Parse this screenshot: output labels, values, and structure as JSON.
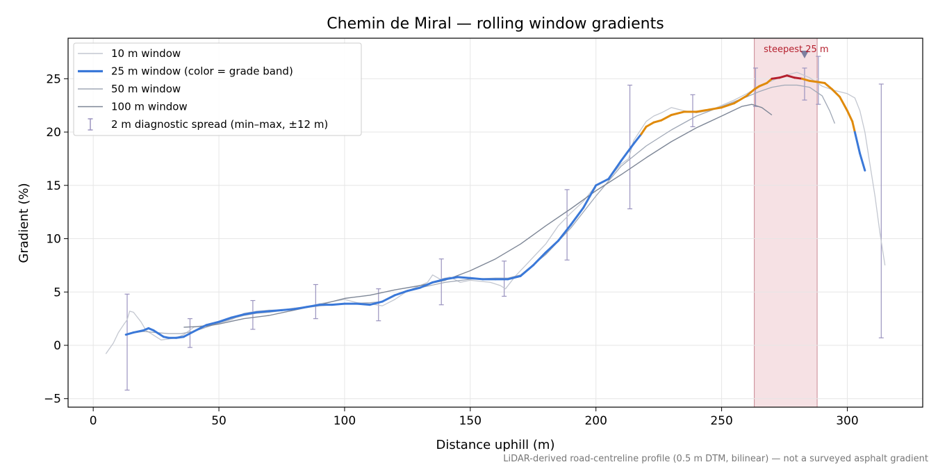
{
  "chart_data": {
    "type": "line",
    "title": "Chemin de Miral — rolling window gradients",
    "xlabel": "Distance uphill (m)",
    "ylabel": "Gradient (%)",
    "xlim": [
      -10,
      330
    ],
    "ylim": [
      -5.8,
      28.8
    ],
    "xticks": [
      0,
      50,
      100,
      150,
      200,
      250,
      300
    ],
    "yticks": [
      -5,
      0,
      5,
      10,
      15,
      20,
      25
    ],
    "tick_labels": {
      "x": [
        "0",
        "50",
        "100",
        "150",
        "200",
        "250",
        "300"
      ],
      "y": [
        "−5",
        "0",
        "5",
        "10",
        "15",
        "20",
        "25"
      ]
    },
    "grid": true,
    "legend_position": "upper-left",
    "footnote": "LiDAR-derived road-centreline profile (0.5 m DTM, bilinear) — not a surveyed asphalt gradient",
    "legend": [
      {
        "label": "10 m window",
        "color": "#c3c7d0",
        "kind": "line"
      },
      {
        "label": "25 m window (color = grade band)",
        "color": "#3a78d8",
        "kind": "thick-line"
      },
      {
        "label": "50 m window",
        "color": "#a0a8b6",
        "kind": "line"
      },
      {
        "label": "100 m window",
        "color": "#7d8696",
        "kind": "line"
      },
      {
        "label": "2 m diagnostic spread (min–max, ±12 m)",
        "color": "#9a93bf",
        "kind": "errorbar"
      }
    ],
    "highlight_span": {
      "x": [
        263,
        288
      ],
      "label": "steepest 25 m",
      "color": "#e6a9b1",
      "peak_x": 283,
      "marker_y": 27.3
    },
    "series": [
      {
        "name": "10 m window",
        "color": "#c3c7d0",
        "x": [
          5,
          8,
          10,
          12,
          13.5,
          14.5,
          16,
          17,
          19,
          21,
          23,
          25,
          27,
          30,
          33,
          36,
          40,
          45,
          50,
          55,
          60,
          65,
          70,
          75,
          80,
          85,
          90,
          95,
          100,
          105,
          110,
          115,
          120,
          125,
          130,
          133,
          135,
          138,
          142,
          146,
          150,
          154,
          158,
          162,
          164,
          168,
          172,
          176,
          180,
          185,
          190,
          195,
          200,
          205,
          210,
          213,
          215,
          220,
          223,
          226,
          230,
          235,
          240,
          245,
          250,
          255,
          260,
          265,
          270,
          275,
          280,
          285,
          290,
          295,
          300,
          303,
          305,
          307,
          309,
          311,
          313,
          315
        ],
        "y": [
          -0.8,
          0.2,
          1.2,
          1.9,
          2.4,
          3.2,
          3.1,
          2.8,
          2.2,
          1.4,
          1.1,
          0.8,
          0.5,
          0.6,
          0.7,
          1.0,
          1.7,
          1.9,
          2.1,
          2.4,
          3.0,
          3.2,
          3.3,
          3.3,
          3.5,
          3.6,
          3.9,
          4.1,
          4.3,
          4.0,
          3.9,
          3.7,
          4.3,
          5.1,
          5.6,
          5.9,
          6.6,
          6.2,
          6.4,
          5.9,
          6.1,
          6.0,
          5.9,
          5.6,
          5.3,
          6.5,
          7.5,
          8.5,
          9.5,
          11.2,
          12.4,
          13.5,
          15.0,
          15.6,
          17.0,
          17.5,
          19.2,
          21.0,
          21.5,
          21.8,
          22.3,
          22.0,
          21.8,
          22.0,
          22.5,
          23.0,
          23.6,
          24.3,
          24.8,
          25.3,
          25.6,
          25.1,
          24.3,
          23.9,
          23.6,
          23.2,
          22.0,
          20.0,
          17.0,
          14.0,
          10.5,
          7.5
        ]
      },
      {
        "name": "25 m window (color = grade band)",
        "color": "#3a78d8",
        "x": [
          13,
          16,
          20,
          22,
          24,
          26,
          28,
          30,
          33,
          36,
          40,
          45,
          50,
          55,
          60,
          65,
          70,
          75,
          80,
          85,
          90,
          95,
          100,
          105,
          110,
          115,
          120,
          125,
          130,
          135,
          140,
          145,
          150,
          155,
          160,
          165,
          170,
          175,
          180,
          185,
          190,
          195,
          200,
          205,
          210,
          215,
          218,
          220,
          223,
          226,
          230,
          235,
          240,
          245,
          250,
          255,
          260,
          263,
          265,
          268,
          270,
          273,
          276,
          279,
          282,
          285,
          288,
          291,
          294,
          297,
          300,
          302,
          303,
          305,
          307
        ],
        "y": [
          1.0,
          1.2,
          1.4,
          1.6,
          1.4,
          1.1,
          0.8,
          0.7,
          0.7,
          0.8,
          1.3,
          1.9,
          2.2,
          2.6,
          2.9,
          3.1,
          3.2,
          3.3,
          3.4,
          3.6,
          3.8,
          3.8,
          3.9,
          3.9,
          3.8,
          4.1,
          4.7,
          5.1,
          5.4,
          5.9,
          6.2,
          6.4,
          6.3,
          6.2,
          6.2,
          6.2,
          6.5,
          7.5,
          8.7,
          9.8,
          11.3,
          12.9,
          15.0,
          15.6,
          17.3,
          18.9,
          19.8,
          20.5,
          20.9,
          21.1,
          21.6,
          21.9,
          21.9,
          22.1,
          22.3,
          22.7,
          23.4,
          24.0,
          24.3,
          24.6,
          25.0,
          25.1,
          25.3,
          25.1,
          25.0,
          24.8,
          24.7,
          24.6,
          24.0,
          23.3,
          22.0,
          21.0,
          20.0,
          18.0,
          16.4
        ]
      },
      {
        "name": "50 m window",
        "color": "#a0a8b6",
        "x": [
          14,
          20,
          25,
          30,
          35,
          40,
          45,
          50,
          55,
          60,
          65,
          70,
          80,
          90,
          100,
          110,
          115,
          120,
          130,
          140,
          150,
          160,
          165,
          170,
          180,
          190,
          200,
          210,
          220,
          230,
          240,
          250,
          260,
          265,
          270,
          275,
          280,
          285,
          290,
          293,
          295
        ],
        "y": [
          1.1,
          1.3,
          1.2,
          1.1,
          1.1,
          1.3,
          1.7,
          2.1,
          2.5,
          2.8,
          3.0,
          3.1,
          3.4,
          3.7,
          3.9,
          4.0,
          4.1,
          4.7,
          5.4,
          5.9,
          6.2,
          6.3,
          6.3,
          6.6,
          8.5,
          11.0,
          14.0,
          16.8,
          18.7,
          20.2,
          21.5,
          22.4,
          23.3,
          23.8,
          24.2,
          24.4,
          24.4,
          24.2,
          23.4,
          22.0,
          20.8
        ]
      },
      {
        "name": "100 m window",
        "color": "#7d8696",
        "x": [
          36,
          45,
          50,
          60,
          70,
          80,
          90,
          100,
          110,
          120,
          130,
          140,
          150,
          160,
          170,
          180,
          190,
          200,
          210,
          220,
          230,
          240,
          250,
          258,
          262,
          266,
          270
        ],
        "y": [
          1.7,
          1.8,
          2.0,
          2.5,
          2.8,
          3.3,
          3.8,
          4.4,
          4.7,
          5.2,
          5.6,
          6.1,
          7.0,
          8.1,
          9.5,
          11.2,
          12.8,
          14.5,
          16.0,
          17.6,
          19.1,
          20.4,
          21.5,
          22.4,
          22.6,
          22.3,
          21.6
        ]
      }
    ],
    "grade_bands": [
      {
        "from_y": 0,
        "to_y": 20,
        "color": "#3a78d8"
      },
      {
        "from_y": 20,
        "to_y": 25,
        "color": "#e08a0b"
      },
      {
        "from_y": 25,
        "to_y": 100,
        "color": "#b5202e"
      }
    ],
    "error_bars": [
      {
        "x": 13.5,
        "low": -4.2,
        "high": 4.8
      },
      {
        "x": 38.5,
        "low": -0.2,
        "high": 2.5
      },
      {
        "x": 63.5,
        "low": 1.5,
        "high": 4.2
      },
      {
        "x": 88.5,
        "low": 2.5,
        "high": 5.7
      },
      {
        "x": 113.5,
        "low": 2.3,
        "high": 5.3
      },
      {
        "x": 138.5,
        "low": 3.8,
        "high": 8.1
      },
      {
        "x": 163.5,
        "low": 4.6,
        "high": 7.9
      },
      {
        "x": 188.5,
        "low": 8.0,
        "high": 14.6
      },
      {
        "x": 213.5,
        "low": 12.8,
        "high": 24.4
      },
      {
        "x": 238.5,
        "low": 20.5,
        "high": 23.5
      },
      {
        "x": 263.5,
        "low": 22.4,
        "high": 26.0
      },
      {
        "x": 283,
        "low": 23.0,
        "high": 26.0
      },
      {
        "x": 288.5,
        "low": 22.6,
        "high": 27.1
      },
      {
        "x": 313.5,
        "low": 0.7,
        "high": 24.5
      }
    ]
  }
}
